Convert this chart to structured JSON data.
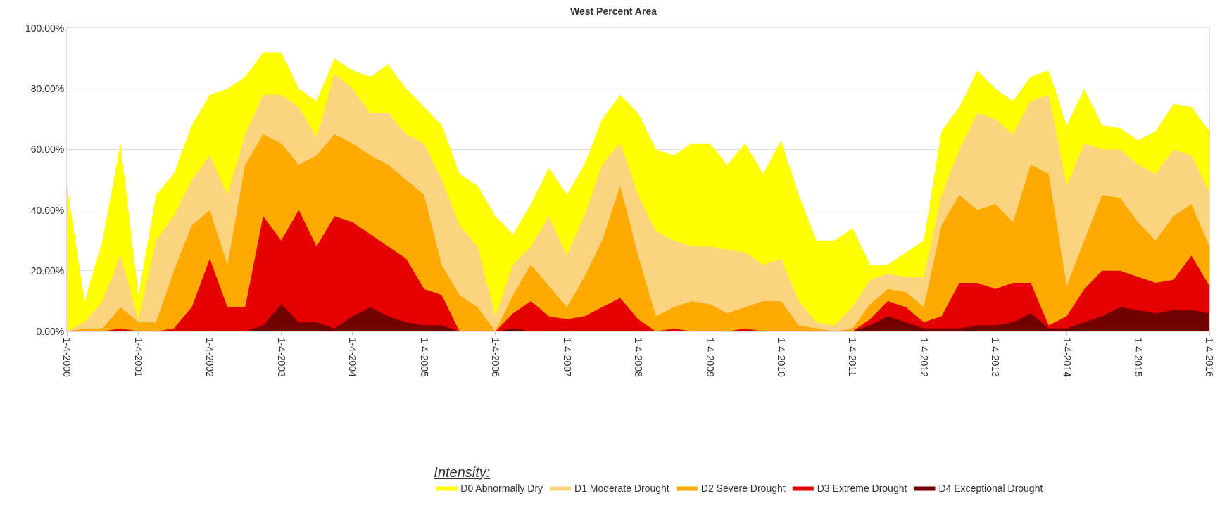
{
  "chart_data": {
    "type": "area",
    "title": "West Percent Area",
    "legend_title": "Intensity:",
    "legend": "bottom",
    "grid": "y",
    "stacked": false,
    "x": [
      "2000-01-04",
      "2000-04-04",
      "2000-07-04",
      "2000-10-04",
      "2001-01-04",
      "2001-04-04",
      "2001-07-04",
      "2001-10-04",
      "2002-01-04",
      "2002-04-04",
      "2002-07-04",
      "2002-10-04",
      "2003-01-04",
      "2003-04-04",
      "2003-07-04",
      "2003-10-04",
      "2004-01-04",
      "2004-04-04",
      "2004-07-04",
      "2004-10-04",
      "2005-01-04",
      "2005-04-04",
      "2005-07-04",
      "2005-10-04",
      "2006-01-04",
      "2006-04-04",
      "2006-07-04",
      "2006-10-04",
      "2007-01-04",
      "2007-04-04",
      "2007-07-04",
      "2007-10-04",
      "2008-01-04",
      "2008-04-04",
      "2008-07-04",
      "2008-10-04",
      "2009-01-04",
      "2009-04-04",
      "2009-07-04",
      "2009-10-04",
      "2010-01-04",
      "2010-04-04",
      "2010-07-04",
      "2010-10-04",
      "2011-01-04",
      "2011-04-04",
      "2011-07-04",
      "2011-10-04",
      "2012-01-04",
      "2012-04-04",
      "2012-07-04",
      "2012-10-04",
      "2013-01-04",
      "2013-04-04",
      "2013-07-04",
      "2013-10-04",
      "2014-01-04",
      "2014-04-04",
      "2014-07-04",
      "2014-10-04",
      "2015-01-04",
      "2015-04-04",
      "2015-07-04",
      "2015-10-04",
      "2016-01-04"
    ],
    "series": [
      {
        "name": "D0 Abnormally Dry",
        "color": "#ffff00",
        "values": [
          48,
          10,
          30,
          62,
          12,
          45,
          52,
          68,
          78,
          80,
          84,
          92,
          92,
          80,
          76,
          90,
          86,
          84,
          88,
          80,
          74,
          68,
          52,
          48,
          38,
          32,
          42,
          54,
          45,
          55,
          70,
          78,
          72,
          60,
          58,
          62,
          62,
          55,
          62,
          52,
          63,
          45,
          30,
          30,
          34,
          22,
          22,
          26,
          30,
          66,
          74,
          86,
          80,
          76,
          84,
          86,
          68,
          80,
          68,
          67,
          63,
          66,
          75,
          74,
          66
        ]
      },
      {
        "name": "D1 Moderate Drought",
        "color": "#fcd37f",
        "values": [
          0,
          3,
          10,
          25,
          4,
          30,
          38,
          50,
          58,
          45,
          65,
          78,
          78,
          74,
          64,
          85,
          80,
          72,
          72,
          65,
          62,
          50,
          35,
          28,
          5,
          22,
          28,
          38,
          25,
          38,
          55,
          62,
          45,
          33,
          30,
          28,
          28,
          27,
          26,
          22,
          24,
          10,
          3,
          2,
          8,
          17,
          19,
          18,
          18,
          45,
          60,
          72,
          70,
          65,
          76,
          78,
          48,
          62,
          60,
          60,
          55,
          52,
          60,
          58,
          46
        ]
      },
      {
        "name": "D2 Severe Drought",
        "color": "#ffaa00",
        "values": [
          0,
          1,
          1,
          8,
          3,
          3,
          20,
          35,
          40,
          22,
          55,
          65,
          62,
          55,
          58,
          65,
          62,
          58,
          55,
          50,
          45,
          22,
          12,
          8,
          0,
          12,
          22,
          15,
          8,
          18,
          30,
          48,
          25,
          5,
          8,
          10,
          9,
          6,
          8,
          10,
          10,
          2,
          1,
          0,
          1,
          9,
          14,
          13,
          8,
          35,
          45,
          40,
          42,
          36,
          55,
          52,
          15,
          30,
          45,
          44,
          36,
          30,
          38,
          42,
          28
        ]
      },
      {
        "name": "D3 Extreme Drought",
        "color": "#e60000",
        "values": [
          0,
          0,
          0,
          1,
          0,
          0,
          1,
          8,
          24,
          8,
          8,
          38,
          30,
          40,
          28,
          38,
          36,
          32,
          28,
          24,
          14,
          12,
          0,
          0,
          0,
          6,
          10,
          5,
          4,
          5,
          8,
          11,
          4,
          0,
          1,
          0,
          0,
          0,
          1,
          0,
          0,
          0,
          0,
          0,
          0,
          4,
          10,
          8,
          3,
          5,
          16,
          16,
          14,
          16,
          16,
          2,
          5,
          14,
          20,
          20,
          18,
          16,
          17,
          25,
          15
        ]
      },
      {
        "name": "D4 Exceptional Drought",
        "color": "#730000",
        "values": [
          0,
          0,
          0,
          0,
          0,
          0,
          0,
          0,
          0,
          0,
          0,
          2,
          9,
          3,
          3,
          1,
          5,
          8,
          5,
          3,
          2,
          2,
          0,
          0,
          0,
          1,
          0,
          0,
          0,
          0,
          0,
          0,
          0,
          0,
          0,
          0,
          0,
          0,
          0,
          0,
          0,
          0,
          0,
          0,
          0,
          2,
          5,
          3,
          1,
          1,
          1,
          2,
          2,
          3,
          6,
          1,
          1,
          3,
          5,
          8,
          7,
          6,
          7,
          7,
          6
        ]
      }
    ],
    "xlim": [
      "2000-01-04",
      "2016-01-04"
    ],
    "xticks": [
      {
        "value": "2000-01-04",
        "label": "1-4-2000"
      },
      {
        "value": "2001-01-04",
        "label": "1-4-2001"
      },
      {
        "value": "2002-01-04",
        "label": "1-4-2002"
      },
      {
        "value": "2003-01-04",
        "label": "1-4-2003"
      },
      {
        "value": "2004-01-04",
        "label": "1-4-2004"
      },
      {
        "value": "2005-01-04",
        "label": "1-4-2005"
      },
      {
        "value": "2006-01-04",
        "label": "1-4-2006"
      },
      {
        "value": "2007-01-04",
        "label": "1-4-2007"
      },
      {
        "value": "2008-01-04",
        "label": "1-4-2008"
      },
      {
        "value": "2009-01-04",
        "label": "1-4-2009"
      },
      {
        "value": "2010-01-04",
        "label": "1-4-2010"
      },
      {
        "value": "2011-01-04",
        "label": "1-4-2011"
      },
      {
        "value": "2012-01-04",
        "label": "1-4-2012"
      },
      {
        "value": "2013-01-04",
        "label": "1-4-2013"
      },
      {
        "value": "2014-01-04",
        "label": "1-4-2014"
      },
      {
        "value": "2015-01-04",
        "label": "1-4-2015"
      },
      {
        "value": "2016-01-04",
        "label": "1-4-2016"
      }
    ],
    "ylim": [
      0,
      100
    ],
    "yticks": [
      {
        "value": 0,
        "label": "0.00%"
      },
      {
        "value": 20,
        "label": "20.00%"
      },
      {
        "value": 40,
        "label": "40.00%"
      },
      {
        "value": 60,
        "label": "60.00%"
      },
      {
        "value": 80,
        "label": "80.00%"
      },
      {
        "value": 100,
        "label": "100.00%"
      }
    ]
  }
}
